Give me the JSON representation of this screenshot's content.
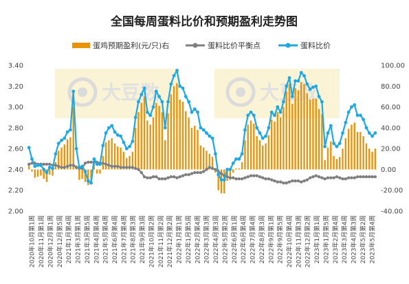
{
  "chart_data": {
    "type": "bar+line",
    "title": "全国每周蛋料比价和预期盈利走势图",
    "legend": [
      {
        "name": "蛋鸡预期盈利(元/只)右",
        "color": "#E8940A",
        "kind": "bar"
      },
      {
        "name": "蛋料比价平衡点",
        "color": "#7F7F7F",
        "kind": "line"
      },
      {
        "name": "蛋料比价",
        "color": "#1FA8E0",
        "kind": "line"
      }
    ],
    "left_axis": {
      "min": 2.0,
      "max": 3.4,
      "step": 0.2,
      "ticks": [
        "2.00",
        "2.20",
        "2.40",
        "2.60",
        "2.80",
        "3.00",
        "3.20",
        "3.40"
      ]
    },
    "right_axis": {
      "min": -40,
      "max": 100,
      "step": 20,
      "ticks": [
        "-40.00",
        "-20.00",
        "0.00",
        "20.00",
        "40.00",
        "60.00",
        "80.00",
        "100.00"
      ]
    },
    "x_labels": [
      "2020年10月第1周",
      "2020年11月第1周",
      "2020年12月第1周",
      "2020年12月第5周",
      "2021年1月第4周",
      "2021年3月第1周",
      "2021年3月第5周",
      "2021年4月第4周",
      "2021年5月第4周",
      "2021年6月第4周",
      "2021年7月第4周",
      "2021年8月第3周",
      "2021年9月第3周",
      "2021年10月第2周",
      "2021年11月第2周",
      "2021年12月第2周",
      "2022年1月第1周",
      "2022年1月第5周",
      "2022年2月第4周",
      "2022年3月第3周",
      "2022年4月第3周",
      "2022年5月第2周",
      "2022年6月第1周",
      "2022年6月第4周",
      "2022年7月第4周",
      "2022年8月第3周",
      "2022年9月第1周",
      "2022年9月第5周",
      "2022年10月第4周",
      "2022年11月第3周",
      "2022年12月第2周",
      "2023年1月第1周",
      "2023年1月第5周",
      "2023年2月第4周",
      "2023年3月第4周",
      "2023年4月第3周",
      "2023年5月第2周",
      "2023年5月第4周"
    ],
    "egg_feed_ratio": [
      2.61,
      2.5,
      2.43,
      2.44,
      2.44,
      2.4,
      2.37,
      2.42,
      2.41,
      2.55,
      2.65,
      2.68,
      2.7,
      2.76,
      2.78,
      3.15,
      2.6,
      2.42,
      2.43,
      2.38,
      2.29,
      2.27,
      2.5,
      2.45,
      2.45,
      2.63,
      2.75,
      2.8,
      2.82,
      2.76,
      2.73,
      2.72,
      2.66,
      2.6,
      2.62,
      2.67,
      2.9,
      3.05,
      3.12,
      3.18,
      2.95,
      2.92,
      3.0,
      3.15,
      3.1,
      3.05,
      2.8,
      3.05,
      3.22,
      3.3,
      3.35,
      3.2,
      3.18,
      3.1,
      3.05,
      2.95,
      2.98,
      2.95,
      2.8,
      2.78,
      2.75,
      2.72,
      2.7,
      2.55,
      2.35,
      2.3,
      2.3,
      2.4,
      2.4,
      2.46,
      2.5,
      2.5,
      2.55,
      2.78,
      2.92,
      2.95,
      2.92,
      2.8,
      2.75,
      2.7,
      2.72,
      2.8,
      2.95,
      2.92,
      3.0,
      2.95,
      3.05,
      3.2,
      3.28,
      3.1,
      3.25,
      3.25,
      3.33,
      3.3,
      3.22,
      3.17,
      3.19,
      3.2,
      3.1,
      3.05,
      2.62,
      2.75,
      2.82,
      2.65,
      2.62,
      2.65,
      2.75,
      2.85,
      2.95,
      3.0,
      3.02,
      2.92,
      2.92,
      2.88,
      2.8,
      2.75,
      2.72,
      2.75
    ],
    "balance_point": [
      2.45,
      2.46,
      2.46,
      2.45,
      2.45,
      2.45,
      2.45,
      2.45,
      2.44,
      2.44,
      2.43,
      2.42,
      2.42,
      2.43,
      2.44,
      2.44,
      2.42,
      2.41,
      2.41,
      2.46,
      2.47,
      2.47,
      2.47,
      2.47,
      2.46,
      2.46,
      2.45,
      2.44,
      2.43,
      2.43,
      2.43,
      2.42,
      2.42,
      2.42,
      2.42,
      2.42,
      2.41,
      2.4,
      2.37,
      2.33,
      2.32,
      2.32,
      2.33,
      2.33,
      2.31,
      2.31,
      2.31,
      2.32,
      2.33,
      2.33,
      2.32,
      2.33,
      2.34,
      2.35,
      2.35,
      2.36,
      2.37,
      2.37,
      2.37,
      2.38,
      2.4,
      2.42,
      2.41,
      2.4,
      2.38,
      2.36,
      2.34,
      2.33,
      2.32,
      2.32,
      2.31,
      2.31,
      2.31,
      2.32,
      2.33,
      2.34,
      2.34,
      2.34,
      2.33,
      2.32,
      2.31,
      2.31,
      2.3,
      2.29,
      2.28,
      2.28,
      2.27,
      2.27,
      2.28,
      2.29,
      2.29,
      2.29,
      2.28,
      2.29,
      2.3,
      2.32,
      2.33,
      2.34,
      2.33,
      2.32,
      2.31,
      2.32,
      2.32,
      2.32,
      2.33,
      2.32,
      2.31,
      2.31,
      2.32,
      2.32,
      2.32,
      2.33,
      2.33,
      2.33,
      2.33,
      2.33,
      2.33,
      2.33
    ],
    "expected_profit": [
      5,
      -2,
      -8,
      -7,
      -6,
      -9,
      -12,
      -5,
      -6,
      7,
      18,
      21,
      24,
      29,
      31,
      60,
      4,
      -10,
      -9,
      -12,
      -15,
      -14,
      8,
      -4,
      -4,
      13,
      26,
      28,
      30,
      25,
      22,
      21,
      17,
      11,
      13,
      17,
      40,
      55,
      64,
      70,
      47,
      43,
      50,
      64,
      61,
      55,
      28,
      54,
      72,
      80,
      83,
      67,
      65,
      56,
      50,
      40,
      42,
      38,
      23,
      21,
      18,
      15,
      12,
      -3,
      -20,
      -23,
      -23,
      -11,
      -10,
      -3,
      1,
      1,
      7,
      28,
      43,
      47,
      44,
      32,
      28,
      23,
      25,
      33,
      48,
      46,
      55,
      50,
      60,
      75,
      82,
      63,
      78,
      76,
      84,
      82,
      73,
      67,
      68,
      68,
      58,
      53,
      9,
      21,
      27,
      13,
      10,
      12,
      20,
      30,
      39,
      43,
      45,
      36,
      36,
      32,
      25,
      20,
      17,
      20
    ]
  },
  "watermarks": [
    "大豆数",
    "大豆数"
  ]
}
